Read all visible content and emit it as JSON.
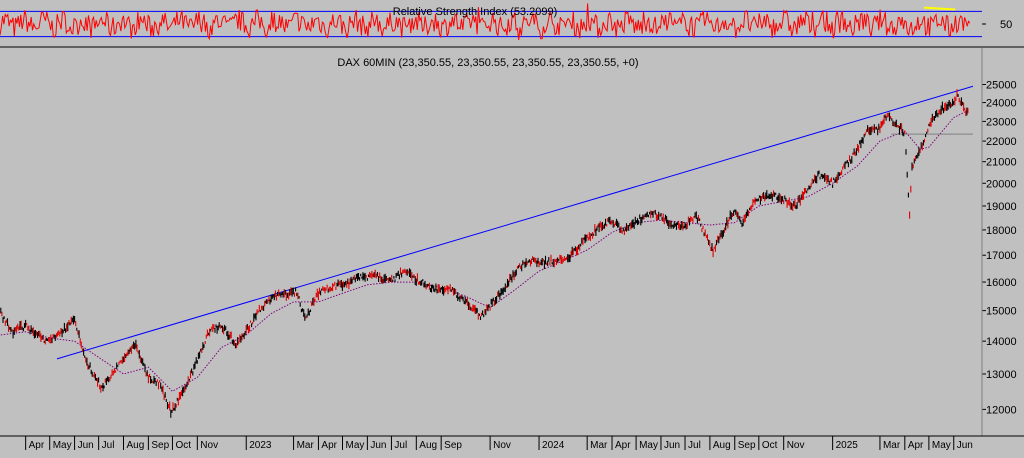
{
  "chart_data": [
    {
      "type": "line",
      "title": "Relative Strength Index (53.2099)",
      "y_ticks": [
        50
      ],
      "reference_lines": [
        30,
        70
      ],
      "ylim": [
        15,
        85
      ],
      "colors": {
        "series": "#ff0000",
        "reference": "#0000ff",
        "highlight": "#ffff00"
      }
    },
    {
      "type": "line",
      "title": "DAX 60MIN (23,350.55, 23,350.55, 23,350.55, 23,350.55, +0)",
      "y_scale": "log",
      "ylim": [
        11300,
        25600
      ],
      "y_ticks": [
        12000,
        13000,
        14000,
        15000,
        16000,
        17000,
        18000,
        19000,
        20000,
        21000,
        22000,
        23000,
        24000,
        25000
      ],
      "x_ticks": [
        "Apr",
        "May",
        "Jun",
        "Jul",
        "Aug",
        "Sep",
        "Oct",
        "Nov",
        "2023",
        "Mar",
        "Apr",
        "May",
        "Jun",
        "Jul",
        "Aug",
        "Sep",
        "Nov",
        "2024",
        "Mar",
        "Apr",
        "May",
        "Jun",
        "Jul",
        "Aug",
        "Sep",
        "Oct",
        "Nov",
        "2025",
        "Mar",
        "Apr",
        "May",
        "Jun"
      ],
      "series": [
        {
          "style": "price",
          "points": [
            [
              "2022-03-01",
              14900
            ],
            [
              "2022-03-15",
              14300
            ],
            [
              "2022-04-01",
              14500
            ],
            [
              "2022-04-20",
              14100
            ],
            [
              "2022-05-01",
              14000
            ],
            [
              "2022-05-15",
              14300
            ],
            [
              "2022-06-01",
              14700
            ],
            [
              "2022-06-15",
              13400
            ],
            [
              "2022-07-05",
              12600
            ],
            [
              "2022-07-15",
              12900
            ],
            [
              "2022-08-01",
              13500
            ],
            [
              "2022-08-15",
              13900
            ],
            [
              "2022-09-01",
              12900
            ],
            [
              "2022-09-15",
              12700
            ],
            [
              "2022-09-29",
              11950
            ],
            [
              "2022-10-15",
              12500
            ],
            [
              "2022-11-01",
              13400
            ],
            [
              "2022-11-15",
              14300
            ],
            [
              "2022-12-01",
              14500
            ],
            [
              "2022-12-20",
              13900
            ],
            [
              "2023-01-05",
              14500
            ],
            [
              "2023-01-20",
              15100
            ],
            [
              "2023-02-05",
              15500
            ],
            [
              "2023-02-20",
              15550
            ],
            [
              "2023-03-05",
              15650
            ],
            [
              "2023-03-15",
              14700
            ],
            [
              "2023-04-01",
              15600
            ],
            [
              "2023-04-20",
              15850
            ],
            [
              "2023-05-05",
              15900
            ],
            [
              "2023-05-25",
              16200
            ],
            [
              "2023-06-15",
              16200
            ],
            [
              "2023-06-30",
              16000
            ],
            [
              "2023-07-15",
              16400
            ],
            [
              "2023-08-01",
              16100
            ],
            [
              "2023-08-20",
              15800
            ],
            [
              "2023-09-15",
              15700
            ],
            [
              "2023-10-01",
              15300
            ],
            [
              "2023-10-20",
              14800
            ],
            [
              "2023-11-05",
              15300
            ],
            [
              "2023-11-20",
              15800
            ],
            [
              "2023-12-05",
              16500
            ],
            [
              "2023-12-20",
              16800
            ],
            [
              "2024-01-05",
              16700
            ],
            [
              "2024-01-20",
              16800
            ],
            [
              "2024-02-10",
              17000
            ],
            [
              "2024-03-01",
              17700
            ],
            [
              "2024-03-20",
              18200
            ],
            [
              "2024-04-01",
              18400
            ],
            [
              "2024-04-15",
              17900
            ],
            [
              "2024-05-15",
              18700
            ],
            [
              "2024-06-01",
              18600
            ],
            [
              "2024-06-15",
              18100
            ],
            [
              "2024-07-01",
              18200
            ],
            [
              "2024-07-15",
              18600
            ],
            [
              "2024-08-05",
              17150
            ],
            [
              "2024-08-15",
              17800
            ],
            [
              "2024-09-01",
              18900
            ],
            [
              "2024-09-10",
              18300
            ],
            [
              "2024-09-25",
              19200
            ],
            [
              "2024-10-15",
              19500
            ],
            [
              "2024-11-01",
              19300
            ],
            [
              "2024-11-15",
              19000
            ],
            [
              "2024-12-01",
              19700
            ],
            [
              "2024-12-15",
              20400
            ],
            [
              "2025-01-01",
              20000
            ],
            [
              "2025-01-15",
              20700
            ],
            [
              "2025-02-01",
              21600
            ],
            [
              "2025-02-15",
              22600
            ],
            [
              "2025-03-01",
              22600
            ],
            [
              "2025-03-10",
              23400
            ],
            [
              "2025-03-20",
              22900
            ],
            [
              "2025-04-01",
              22400
            ],
            [
              "2025-04-07",
              18500
            ],
            [
              "2025-04-10",
              20800
            ],
            [
              "2025-04-20",
              21500
            ],
            [
              "2025-05-01",
              22800
            ],
            [
              "2025-05-15",
              23600
            ],
            [
              "2025-06-01",
              24000
            ],
            [
              "2025-06-05",
              24400
            ],
            [
              "2025-06-12",
              23800
            ],
            [
              "2025-06-20",
              23350
            ]
          ]
        },
        {
          "style": "moving-average",
          "color": "#800080",
          "points": [
            [
              "2022-03-01",
              14200
            ],
            [
              "2022-04-01",
              14300
            ],
            [
              "2022-05-01",
              14100
            ],
            [
              "2022-06-01",
              14000
            ],
            [
              "2022-07-01",
              13500
            ],
            [
              "2022-08-01",
              13000
            ],
            [
              "2022-09-01",
              13200
            ],
            [
              "2022-10-01",
              12500
            ],
            [
              "2022-11-01",
              12900
            ],
            [
              "2022-12-01",
              13800
            ],
            [
              "2023-01-01",
              14200
            ],
            [
              "2023-02-01",
              14900
            ],
            [
              "2023-03-01",
              15300
            ],
            [
              "2023-04-01",
              15300
            ],
            [
              "2023-05-01",
              15600
            ],
            [
              "2023-06-01",
              15900
            ],
            [
              "2023-07-01",
              16000
            ],
            [
              "2023-08-01",
              16000
            ],
            [
              "2023-09-01",
              15800
            ],
            [
              "2023-10-01",
              15500
            ],
            [
              "2023-11-01",
              15100
            ],
            [
              "2023-12-01",
              15700
            ],
            [
              "2024-01-01",
              16400
            ],
            [
              "2024-02-01",
              16800
            ],
            [
              "2024-03-01",
              17200
            ],
            [
              "2024-04-01",
              17900
            ],
            [
              "2024-05-01",
              18300
            ],
            [
              "2024-06-01",
              18400
            ],
            [
              "2024-07-01",
              18300
            ],
            [
              "2024-08-01",
              18200
            ],
            [
              "2024-09-01",
              18300
            ],
            [
              "2024-10-01",
              19000
            ],
            [
              "2024-11-01",
              19200
            ],
            [
              "2024-12-01",
              19400
            ],
            [
              "2025-01-01",
              20000
            ],
            [
              "2025-02-01",
              20800
            ],
            [
              "2025-03-01",
              22000
            ],
            [
              "2025-04-01",
              22500
            ],
            [
              "2025-04-20",
              21600
            ],
            [
              "2025-05-01",
              21700
            ],
            [
              "2025-06-01",
              23200
            ],
            [
              "2025-06-20",
              23600
            ]
          ]
        },
        {
          "style": "trendline",
          "color": "#0000ff",
          "points": [
            [
              "2022-05-10",
              13450
            ],
            [
              "2025-06-25",
              24900
            ]
          ]
        },
        {
          "style": "horizontal-line",
          "color": "#808080",
          "points": [
            [
              "2025-03-15",
              22350
            ],
            [
              "2025-06-25",
              22350
            ]
          ]
        }
      ]
    }
  ]
}
